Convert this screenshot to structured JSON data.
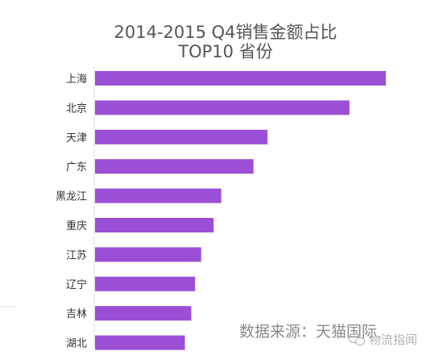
{
  "chart_data": {
    "type": "bar",
    "orientation": "horizontal",
    "title": "2014-2015 Q4销售金额占比",
    "subtitle": "TOP10 省份",
    "categories": [
      "上海",
      "北京",
      "天津",
      "广东",
      "黑龙江",
      "重庆",
      "江苏",
      "辽宁",
      "吉林",
      "湖北"
    ],
    "values": [
      100,
      87.5,
      59.3,
      54.5,
      43.4,
      40.8,
      36.5,
      34.4,
      33.1,
      30.9
    ],
    "xlabel": "",
    "ylabel": "",
    "xlim": [
      0,
      100
    ],
    "grid": false,
    "legend": "none",
    "bar_color": "#9b4fd6"
  },
  "source_text": "数据来源：天猫国际",
  "watermark": {
    "text": "物流指闻",
    "icon": "wechat-icon"
  }
}
